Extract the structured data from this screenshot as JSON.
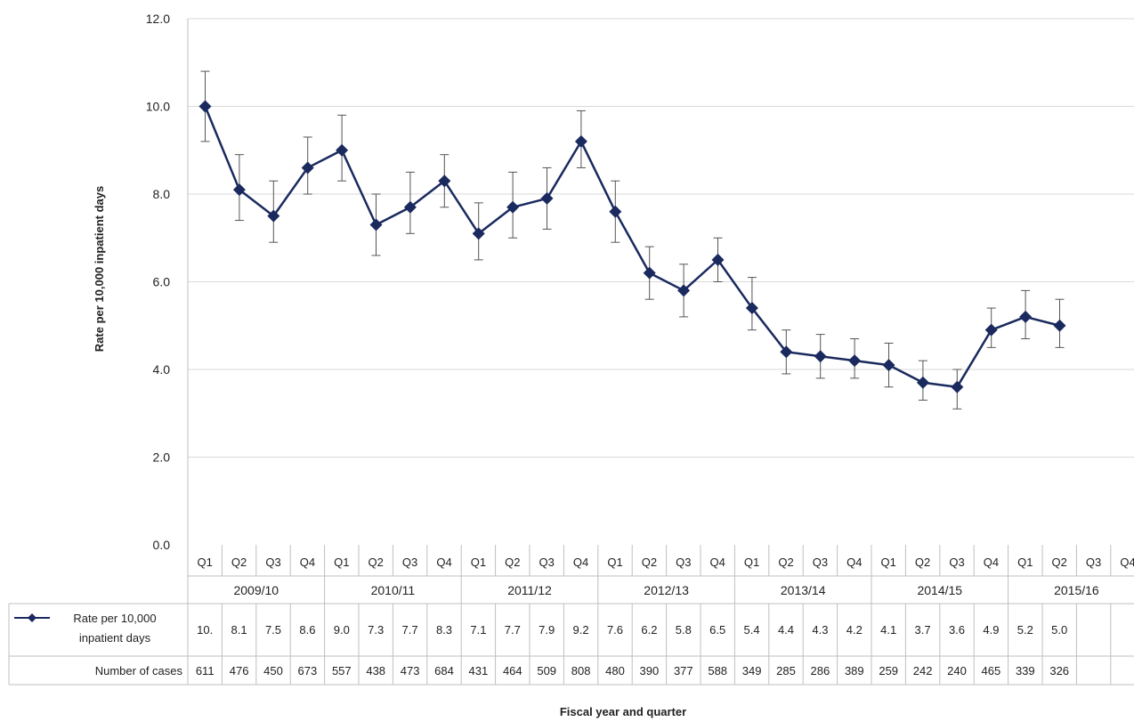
{
  "chart_data": {
    "type": "line",
    "title": "",
    "ylabel": "Rate per 10,000 inpatient days",
    "xlabel": "Fiscal year and quarter",
    "ylim": [
      0,
      12
    ],
    "y_ticks": [
      "0.0",
      "2.0",
      "4.0",
      "6.0",
      "8.0",
      "10.0",
      "12.0"
    ],
    "grid": true,
    "quarters": [
      "Q1",
      "Q2",
      "Q3",
      "Q4",
      "Q1",
      "Q2",
      "Q3",
      "Q4",
      "Q1",
      "Q2",
      "Q3",
      "Q4",
      "Q1",
      "Q2",
      "Q3",
      "Q4",
      "Q1",
      "Q2",
      "Q3",
      "Q4",
      "Q1",
      "Q2",
      "Q3",
      "Q4",
      "Q1",
      "Q2",
      "Q3",
      "Q4"
    ],
    "fiscal_years": [
      "2009/10",
      "2010/11",
      "2011/12",
      "2012/13",
      "2013/14",
      "2014/15",
      "2015/16"
    ],
    "series": [
      {
        "name": "Rate per 10,000 inpatient days",
        "color": "#1a2a5e",
        "values": [
          10.0,
          8.1,
          7.5,
          8.6,
          9.0,
          7.3,
          7.7,
          8.3,
          7.1,
          7.7,
          7.9,
          9.2,
          7.6,
          6.2,
          5.8,
          6.5,
          5.4,
          4.4,
          4.3,
          4.2,
          4.1,
          3.7,
          3.6,
          4.9,
          5.2,
          5.0,
          null,
          null
        ],
        "error_low": [
          9.2,
          7.4,
          6.9,
          8.0,
          8.3,
          6.6,
          7.1,
          7.7,
          6.5,
          7.0,
          7.2,
          8.6,
          6.9,
          5.6,
          5.2,
          6.0,
          4.9,
          3.9,
          3.8,
          3.8,
          3.6,
          3.3,
          3.1,
          4.5,
          4.7,
          4.5,
          null,
          null
        ],
        "error_high": [
          10.8,
          8.9,
          8.3,
          9.3,
          9.8,
          8.0,
          8.5,
          8.9,
          7.8,
          8.5,
          8.6,
          9.9,
          8.3,
          6.8,
          6.4,
          7.0,
          6.1,
          4.9,
          4.8,
          4.7,
          4.6,
          4.2,
          4.0,
          5.4,
          5.8,
          5.6,
          null,
          null
        ]
      }
    ],
    "table": {
      "rate_row_label_line1": "Rate per 10,000",
      "rate_row_label_line2": "inpatient days",
      "rate_row": [
        "10.",
        "8.1",
        "7.5",
        "8.6",
        "9.0",
        "7.3",
        "7.7",
        "8.3",
        "7.1",
        "7.7",
        "7.9",
        "9.2",
        "7.6",
        "6.2",
        "5.8",
        "6.5",
        "5.4",
        "4.4",
        "4.3",
        "4.2",
        "4.1",
        "3.7",
        "3.6",
        "4.9",
        "5.2",
        "5.0",
        "",
        ""
      ],
      "cases_row_label": "Number of cases",
      "cases_row": [
        "611",
        "476",
        "450",
        "673",
        "557",
        "438",
        "473",
        "684",
        "431",
        "464",
        "509",
        "808",
        "480",
        "390",
        "377",
        "588",
        "349",
        "285",
        "286",
        "389",
        "259",
        "242",
        "240",
        "465",
        "339",
        "326",
        "",
        ""
      ]
    }
  }
}
